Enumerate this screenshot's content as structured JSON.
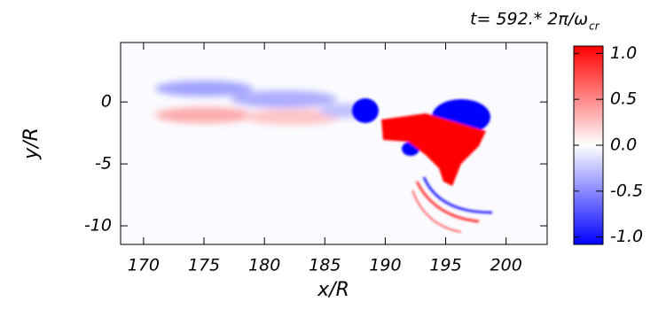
{
  "chart_data": {
    "type": "heatmap",
    "title": "t= 592.* 2π/ω",
    "title_subscript": "cr",
    "x_label": "x/R",
    "y_label": "y/R",
    "xlim": [
      168.1,
      203.4
    ],
    "xticks": [
      170,
      175,
      180,
      185,
      190,
      195,
      200
    ],
    "ylim": [
      -11.5,
      4.8
    ],
    "yticks": [
      -10,
      -5,
      0
    ],
    "colorbar": {
      "zlim": [
        -1.08,
        1.08
      ],
      "colors": [
        "#0000ff",
        "#ffffff",
        "#ff0000"
      ],
      "ticks": [
        {
          "value": -1,
          "label": "-1.0"
        },
        -0.5,
        {
          "value": 0,
          "label": "0.0"
        },
        0.5,
        {
          "value": 1,
          "label": "1.0"
        }
      ]
    }
  }
}
